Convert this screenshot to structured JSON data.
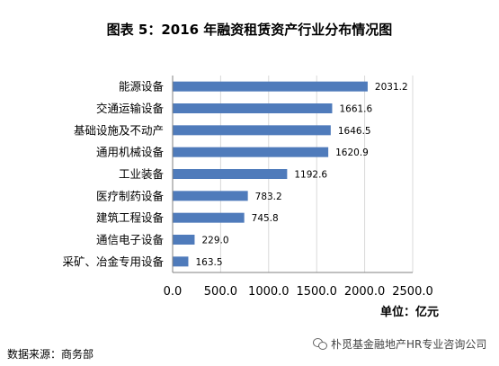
{
  "title": "图表 5：2016 年融资租赁资产行业分布情况图",
  "unit_label": "单位：亿元",
  "source": "数据来源：商务部",
  "watermark": "朴觅基金融地产HR专业咨询公司",
  "chart_data": {
    "type": "bar",
    "orientation": "horizontal",
    "title": "图表 5：2016 年融资租赁资产行业分布情况图",
    "categories": [
      "能源设备",
      "交通运输设备",
      "基础设施及不动产",
      "通用机械设备",
      "工业装备",
      "医疗制药设备",
      "建筑工程设备",
      "通信电子设备",
      "采矿、冶金专用设备"
    ],
    "values": [
      2031.2,
      1661.6,
      1646.5,
      1620.9,
      1192.6,
      783.2,
      745.8,
      229.0,
      163.5
    ],
    "value_labels": [
      "2031.2",
      "1661.6",
      "1646.5",
      "1620.9",
      "1192.6",
      "783.2",
      "745.8",
      "229.0",
      "163.5"
    ],
    "xlim": [
      0,
      2500
    ],
    "xticks": [
      "0.0",
      "500.0",
      "1000.0",
      "1500.0",
      "2000.0",
      "2500.0"
    ],
    "xlabel": "",
    "ylabel": "",
    "grid": "vertical",
    "bar_color": "#4f7bbb"
  }
}
